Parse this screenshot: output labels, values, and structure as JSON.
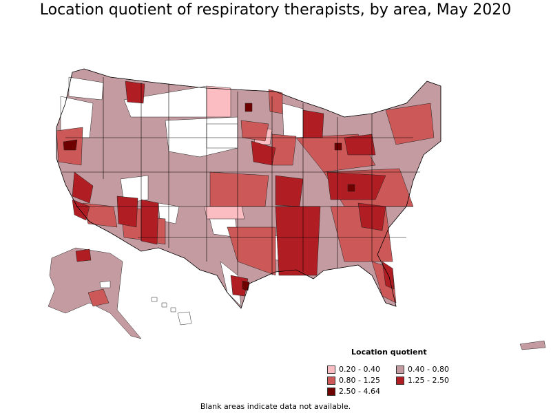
{
  "title": "Location quotient of respiratory therapists, by area, May 2020",
  "legend": {
    "title": "Location quotient",
    "items": [
      {
        "label": "0.20 - 0.40",
        "color": "#fbbdc1"
      },
      {
        "label": "0.40 - 0.80",
        "color": "#c49ba0"
      },
      {
        "label": "0.80 - 1.25",
        "color": "#cc5858"
      },
      {
        "label": "1.25 - 2.50",
        "color": "#b01e24"
      },
      {
        "label": "2.50 - 4.64",
        "color": "#6e0000"
      }
    ]
  },
  "footnote": "Blank areas indicate data not available.",
  "colors": {
    "blank": "#ffffff",
    "border": "#000000"
  }
}
